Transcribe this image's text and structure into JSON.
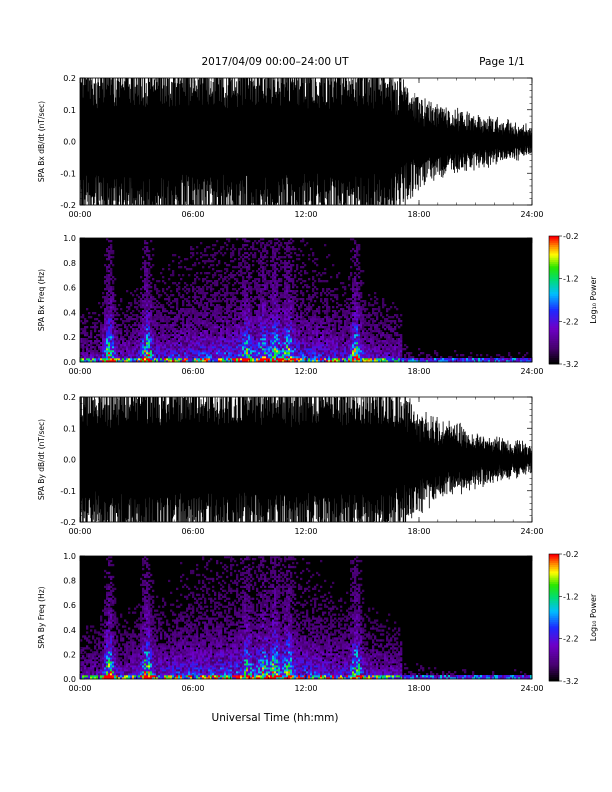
{
  "header": {
    "title": "2017/04/09  00:00–24:00 UT",
    "page": "Page 1/1"
  },
  "x_axis_title": "Universal Time (hh:mm)",
  "chart_data": [
    {
      "type": "line",
      "panel": "SPA Bx dB/dt",
      "ylabel": "SPA Bx dB/dt (nT/sec)",
      "xlim_hours": [
        0,
        24
      ],
      "ylim": [
        -0.2,
        0.2
      ],
      "x_ticks": [
        "00:00",
        "06:00",
        "12:00",
        "18:00",
        "24:00"
      ],
      "y_ticks": [
        "-0.2",
        "-0.1",
        "0.0",
        "0.1",
        "0.2"
      ],
      "envelope_x_hours": [
        0,
        1,
        1.5,
        2,
        3,
        4,
        5,
        6,
        7,
        8,
        9,
        10,
        11,
        12,
        13,
        14,
        15,
        16,
        17,
        18,
        19,
        20,
        21,
        22,
        23,
        24
      ],
      "envelope_amplitude": [
        0.2,
        0.2,
        0.2,
        0.2,
        0.2,
        0.2,
        0.2,
        0.2,
        0.2,
        0.2,
        0.2,
        0.2,
        0.2,
        0.2,
        0.2,
        0.2,
        0.2,
        0.2,
        0.15,
        0.1,
        0.08,
        0.07,
        0.06,
        0.05,
        0.04,
        0.03
      ],
      "grid": false,
      "color": "#000000"
    },
    {
      "type": "heatmap",
      "panel": "SPA Bx Freq",
      "ylabel": "SPA Bx Freq (Hz)",
      "xlim_hours": [
        0,
        24
      ],
      "ylim": [
        0,
        1.0
      ],
      "x_ticks": [
        "00:00",
        "06:00",
        "12:00",
        "18:00",
        "24:00"
      ],
      "y_ticks": [
        "0.0",
        "0.2",
        "0.4",
        "0.6",
        "0.8",
        "1.0"
      ],
      "colorbar": {
        "label": "Log₁₀ Power",
        "range": [
          -3.2,
          -0.2
        ],
        "ticks": [
          "-0.2",
          "-1.2",
          "-2.2",
          "-3.2"
        ]
      },
      "burst_hours": [
        1.5,
        3.5,
        8.8,
        9.7,
        10.3,
        11.0,
        14.6
      ],
      "burst_strength": [
        1.0,
        0.9,
        0.5,
        0.55,
        0.7,
        0.65,
        0.85
      ]
    },
    {
      "type": "line",
      "panel": "SPA By dB/dt",
      "ylabel": "SPA By dB/dt (nT/sec)",
      "xlim_hours": [
        0,
        24
      ],
      "ylim": [
        -0.2,
        0.2
      ],
      "x_ticks": [
        "00:00",
        "06:00",
        "12:00",
        "18:00",
        "24:00"
      ],
      "y_ticks": [
        "-0.2",
        "-0.1",
        "0.0",
        "0.1",
        "0.2"
      ],
      "envelope_x_hours": [
        0,
        1,
        2,
        3,
        4,
        5,
        6,
        7,
        8,
        9,
        10,
        11,
        12,
        13,
        14,
        15,
        16,
        17,
        18,
        19,
        20,
        21,
        22,
        23,
        24
      ],
      "envelope_amplitude": [
        0.2,
        0.2,
        0.2,
        0.2,
        0.2,
        0.2,
        0.2,
        0.2,
        0.2,
        0.2,
        0.2,
        0.2,
        0.2,
        0.2,
        0.2,
        0.2,
        0.2,
        0.17,
        0.12,
        0.09,
        0.08,
        0.06,
        0.05,
        0.04,
        0.03
      ],
      "grid": false,
      "color": "#000000"
    },
    {
      "type": "heatmap",
      "panel": "SPA By Freq",
      "ylabel": "SPA By Freq (Hz)",
      "xlim_hours": [
        0,
        24
      ],
      "ylim": [
        0,
        1.0
      ],
      "x_ticks": [
        "00:00",
        "06:00",
        "12:00",
        "18:00",
        "24:00"
      ],
      "y_ticks": [
        "0.0",
        "0.2",
        "0.4",
        "0.6",
        "0.8",
        "1.0"
      ],
      "colorbar": {
        "label": "Log₁₀ Power",
        "range": [
          -3.2,
          -0.2
        ],
        "ticks": [
          "-0.2",
          "-1.2",
          "-2.2",
          "-3.2"
        ]
      },
      "burst_hours": [
        1.5,
        3.5,
        8.8,
        9.7,
        10.3,
        11.0,
        14.6
      ],
      "burst_strength": [
        1.0,
        0.9,
        0.5,
        0.55,
        0.75,
        0.65,
        0.85
      ]
    }
  ]
}
